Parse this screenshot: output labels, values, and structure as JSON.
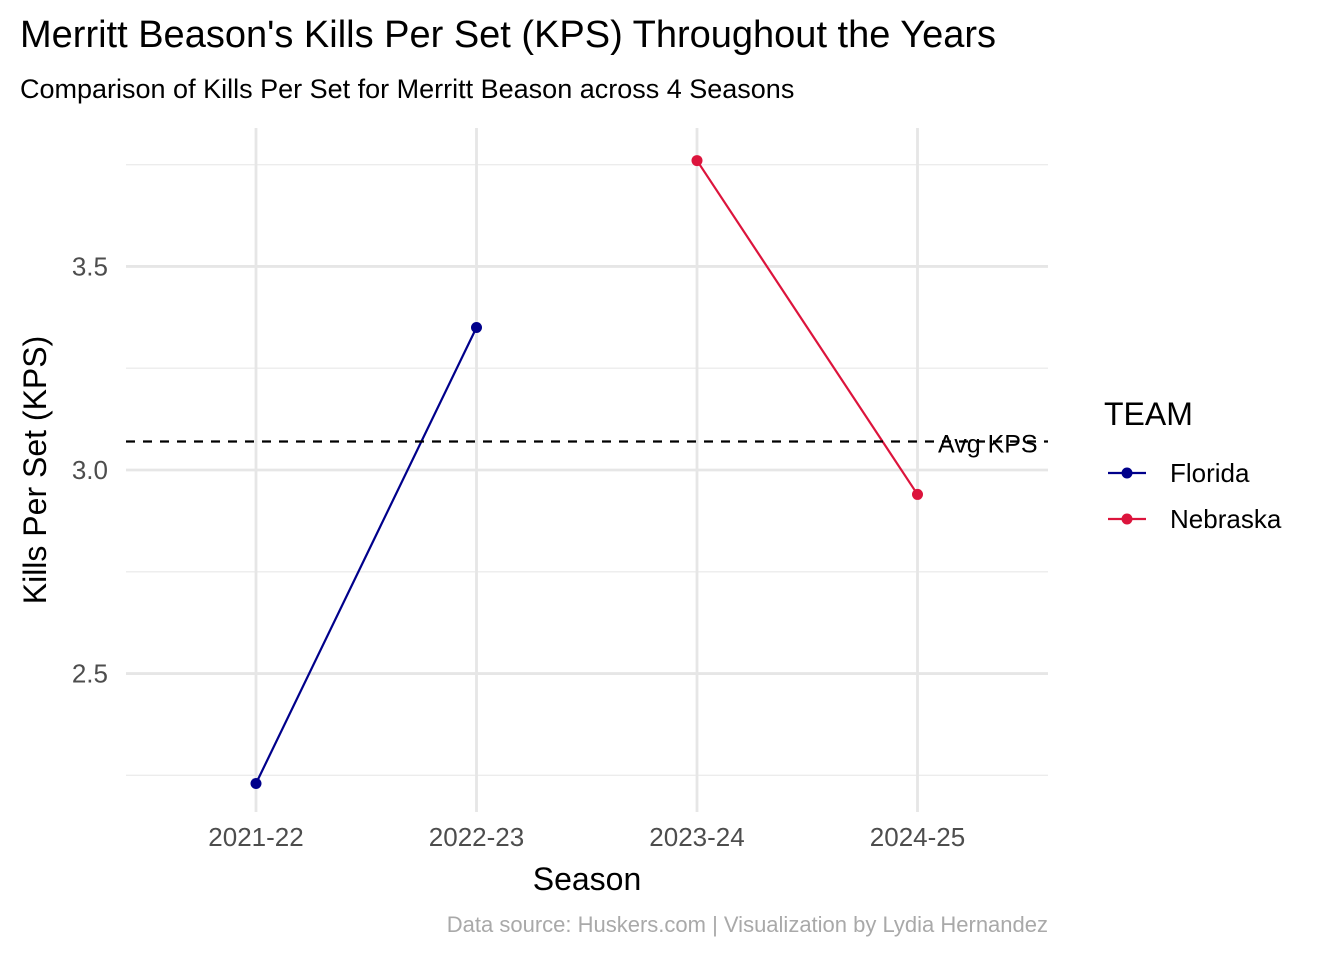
{
  "chart_data": {
    "type": "line",
    "title": "Merritt Beason's Kills Per Set (KPS) Throughout the Years",
    "subtitle": "Comparison of Kills Per Set for Merritt Beason across 4 Seasons",
    "caption": "Data source: Huskers.com | Visualization by Lydia Hernandez",
    "xlabel": "Season",
    "ylabel": "Kills Per Set (KPS)",
    "categories": [
      "2021-22",
      "2022-23",
      "2023-24",
      "2024-25"
    ],
    "y_ticks": [
      2.5,
      3.0,
      3.5
    ],
    "y_tick_labels": [
      "2.5",
      "3.0",
      "3.5"
    ],
    "ylim": [
      2.16,
      3.84
    ],
    "grid": true,
    "legend": {
      "title": "TEAM",
      "position": "right"
    },
    "series": [
      {
        "name": "Florida",
        "color": "#00008b",
        "points": [
          {
            "x": "2021-22",
            "y": 2.23
          },
          {
            "x": "2022-23",
            "y": 3.35
          }
        ]
      },
      {
        "name": "Nebraska",
        "color": "#dc143c",
        "points": [
          {
            "x": "2023-24",
            "y": 3.76
          },
          {
            "x": "2024-25",
            "y": 2.94
          }
        ]
      }
    ],
    "reference_line": {
      "y": 3.07,
      "label": "Avg KPS",
      "style": "dashed"
    }
  }
}
